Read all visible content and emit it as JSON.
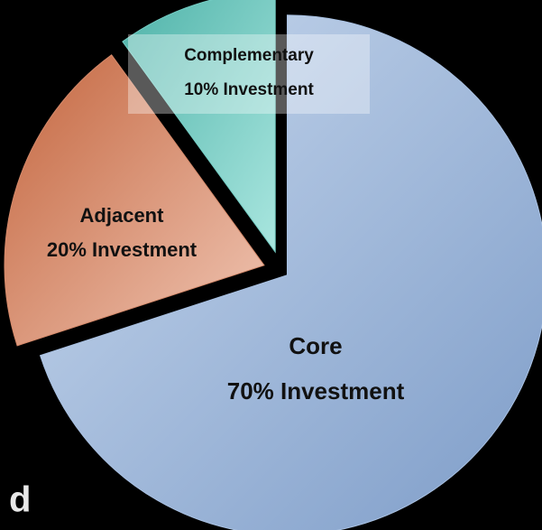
{
  "chart_data": {
    "type": "pie",
    "categories": [
      "Core",
      "Adjacent",
      "Complementary"
    ],
    "values": [
      70,
      20,
      10
    ],
    "value_labels": [
      "70% Investment",
      "20% Investment",
      "10% Investment"
    ],
    "colors": [
      "#a9c1e2",
      "#d4896a",
      "#74cdc4"
    ],
    "annotation": "d"
  }
}
